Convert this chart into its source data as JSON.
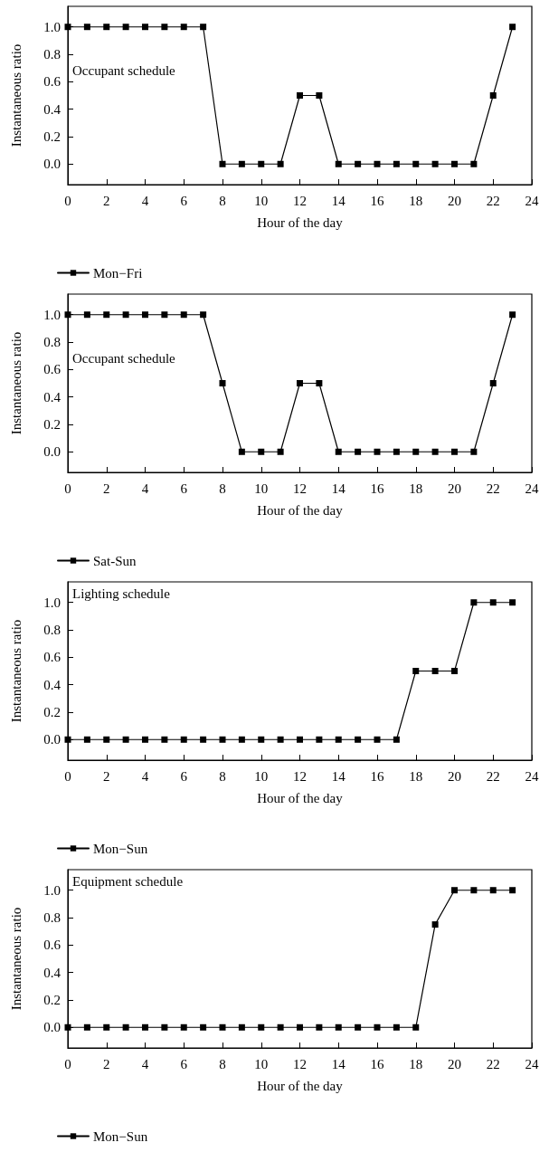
{
  "chart_data": [
    {
      "type": "line",
      "xlabel": "Hour of the day",
      "ylabel": "Instantaneous ratio",
      "annotations": [
        "Occupant schedule"
      ],
      "x": [
        0,
        1,
        2,
        3,
        4,
        5,
        6,
        7,
        8,
        9,
        10,
        11,
        12,
        13,
        14,
        15,
        16,
        17,
        18,
        19,
        20,
        21,
        22,
        23
      ],
      "series": [
        {
          "name": "Mon−Fri",
          "color": "#000000",
          "values": [
            1,
            1,
            1,
            1,
            1,
            1,
            1,
            1,
            0,
            0,
            0,
            0,
            0.5,
            0.5,
            0,
            0,
            0,
            0,
            0,
            0,
            0,
            0,
            0.5,
            1
          ]
        }
      ],
      "xlim": [
        0,
        24
      ],
      "xticks": [
        0,
        2,
        4,
        6,
        8,
        10,
        12,
        14,
        16,
        18,
        20,
        22,
        24
      ],
      "ylim": [
        -0.15,
        1.15
      ],
      "yticks": [
        {
          "value": 0,
          "label": "0.0"
        },
        {
          "value": 0.2,
          "label": "0.2"
        },
        {
          "value": 0.4,
          "label": "0.4"
        },
        {
          "value": 0.6,
          "label": "0.6"
        },
        {
          "value": 0.8,
          "label": "0.8"
        },
        {
          "value": 1,
          "label": "1.0"
        }
      ],
      "grid": false,
      "legend": "bottom left",
      "marker": "square",
      "line_style": "solid"
    },
    {
      "type": "line",
      "xlabel": "Hour of the day",
      "ylabel": "Instantaneous ratio",
      "annotations": [
        "Occupant schedule"
      ],
      "x": [
        0,
        1,
        2,
        3,
        4,
        5,
        6,
        7,
        8,
        9,
        10,
        11,
        12,
        13,
        14,
        15,
        16,
        17,
        18,
        19,
        20,
        21,
        22,
        23
      ],
      "series": [
        {
          "name": "Sat-Sun",
          "color": "#000000",
          "values": [
            1,
            1,
            1,
            1,
            1,
            1,
            1,
            1,
            0.5,
            0,
            0,
            0,
            0.5,
            0.5,
            0,
            0,
            0,
            0,
            0,
            0,
            0,
            0,
            0.5,
            1
          ]
        }
      ],
      "xlim": [
        0,
        24
      ],
      "xticks": [
        0,
        2,
        4,
        6,
        8,
        10,
        12,
        14,
        16,
        18,
        20,
        22,
        24
      ],
      "ylim": [
        -0.15,
        1.15
      ],
      "yticks": [
        {
          "value": 0,
          "label": "0.0"
        },
        {
          "value": 0.2,
          "label": "0.2"
        },
        {
          "value": 0.4,
          "label": "0.4"
        },
        {
          "value": 0.6,
          "label": "0.6"
        },
        {
          "value": 0.8,
          "label": "0.8"
        },
        {
          "value": 1,
          "label": "1.0"
        }
      ],
      "grid": false,
      "legend": "bottom left",
      "marker": "square",
      "line_style": "solid"
    },
    {
      "type": "line",
      "xlabel": "Hour of the day",
      "ylabel": "Instantaneous ratio",
      "annotations": [
        "Lighting schedule"
      ],
      "x": [
        0,
        1,
        2,
        3,
        4,
        5,
        6,
        7,
        8,
        9,
        10,
        11,
        12,
        13,
        14,
        15,
        16,
        17,
        18,
        19,
        20,
        21,
        22,
        23
      ],
      "series": [
        {
          "name": "Mon−Sun",
          "color": "#000000",
          "values": [
            0,
            0,
            0,
            0,
            0,
            0,
            0,
            0,
            0,
            0,
            0,
            0,
            0,
            0,
            0,
            0,
            0,
            0,
            0.5,
            0.5,
            0.5,
            1,
            1,
            1
          ]
        }
      ],
      "xlim": [
        0,
        24
      ],
      "xticks": [
        0,
        2,
        4,
        6,
        8,
        10,
        12,
        14,
        16,
        18,
        20,
        22,
        24
      ],
      "ylim": [
        -0.15,
        1.15
      ],
      "yticks": [
        {
          "value": 0,
          "label": "0.0"
        },
        {
          "value": 0.2,
          "label": "0.2"
        },
        {
          "value": 0.4,
          "label": "0.4"
        },
        {
          "value": 0.6,
          "label": "0.6"
        },
        {
          "value": 0.8,
          "label": "0.8"
        },
        {
          "value": 1,
          "label": "1.0"
        }
      ],
      "grid": false,
      "legend": "bottom left",
      "marker": "square",
      "line_style": "solid"
    },
    {
      "type": "line",
      "xlabel": "Hour of the day",
      "ylabel": "Instantaneous ratio",
      "annotations": [
        "Equipment schedule"
      ],
      "x": [
        0,
        1,
        2,
        3,
        4,
        5,
        6,
        7,
        8,
        9,
        10,
        11,
        12,
        13,
        14,
        15,
        16,
        17,
        18,
        19,
        20,
        21,
        22,
        23
      ],
      "series": [
        {
          "name": "Mon−Sun",
          "color": "#000000",
          "values": [
            0,
            0,
            0,
            0,
            0,
            0,
            0,
            0,
            0,
            0,
            0,
            0,
            0,
            0,
            0,
            0,
            0,
            0,
            0,
            0.75,
            1,
            1,
            1,
            1
          ]
        }
      ],
      "xlim": [
        0,
        24
      ],
      "xticks": [
        0,
        2,
        4,
        6,
        8,
        10,
        12,
        14,
        16,
        18,
        20,
        22,
        24
      ],
      "ylim": [
        -0.15,
        1.15
      ],
      "yticks": [
        {
          "value": 0,
          "label": "0.0"
        },
        {
          "value": 0.2,
          "label": "0.2"
        },
        {
          "value": 0.4,
          "label": "0.4"
        },
        {
          "value": 0.6,
          "label": "0.6"
        },
        {
          "value": 0.8,
          "label": "0.8"
        },
        {
          "value": 1,
          "label": "1.0"
        }
      ],
      "grid": false,
      "legend": "bottom left",
      "marker": "square",
      "line_style": "solid"
    }
  ]
}
